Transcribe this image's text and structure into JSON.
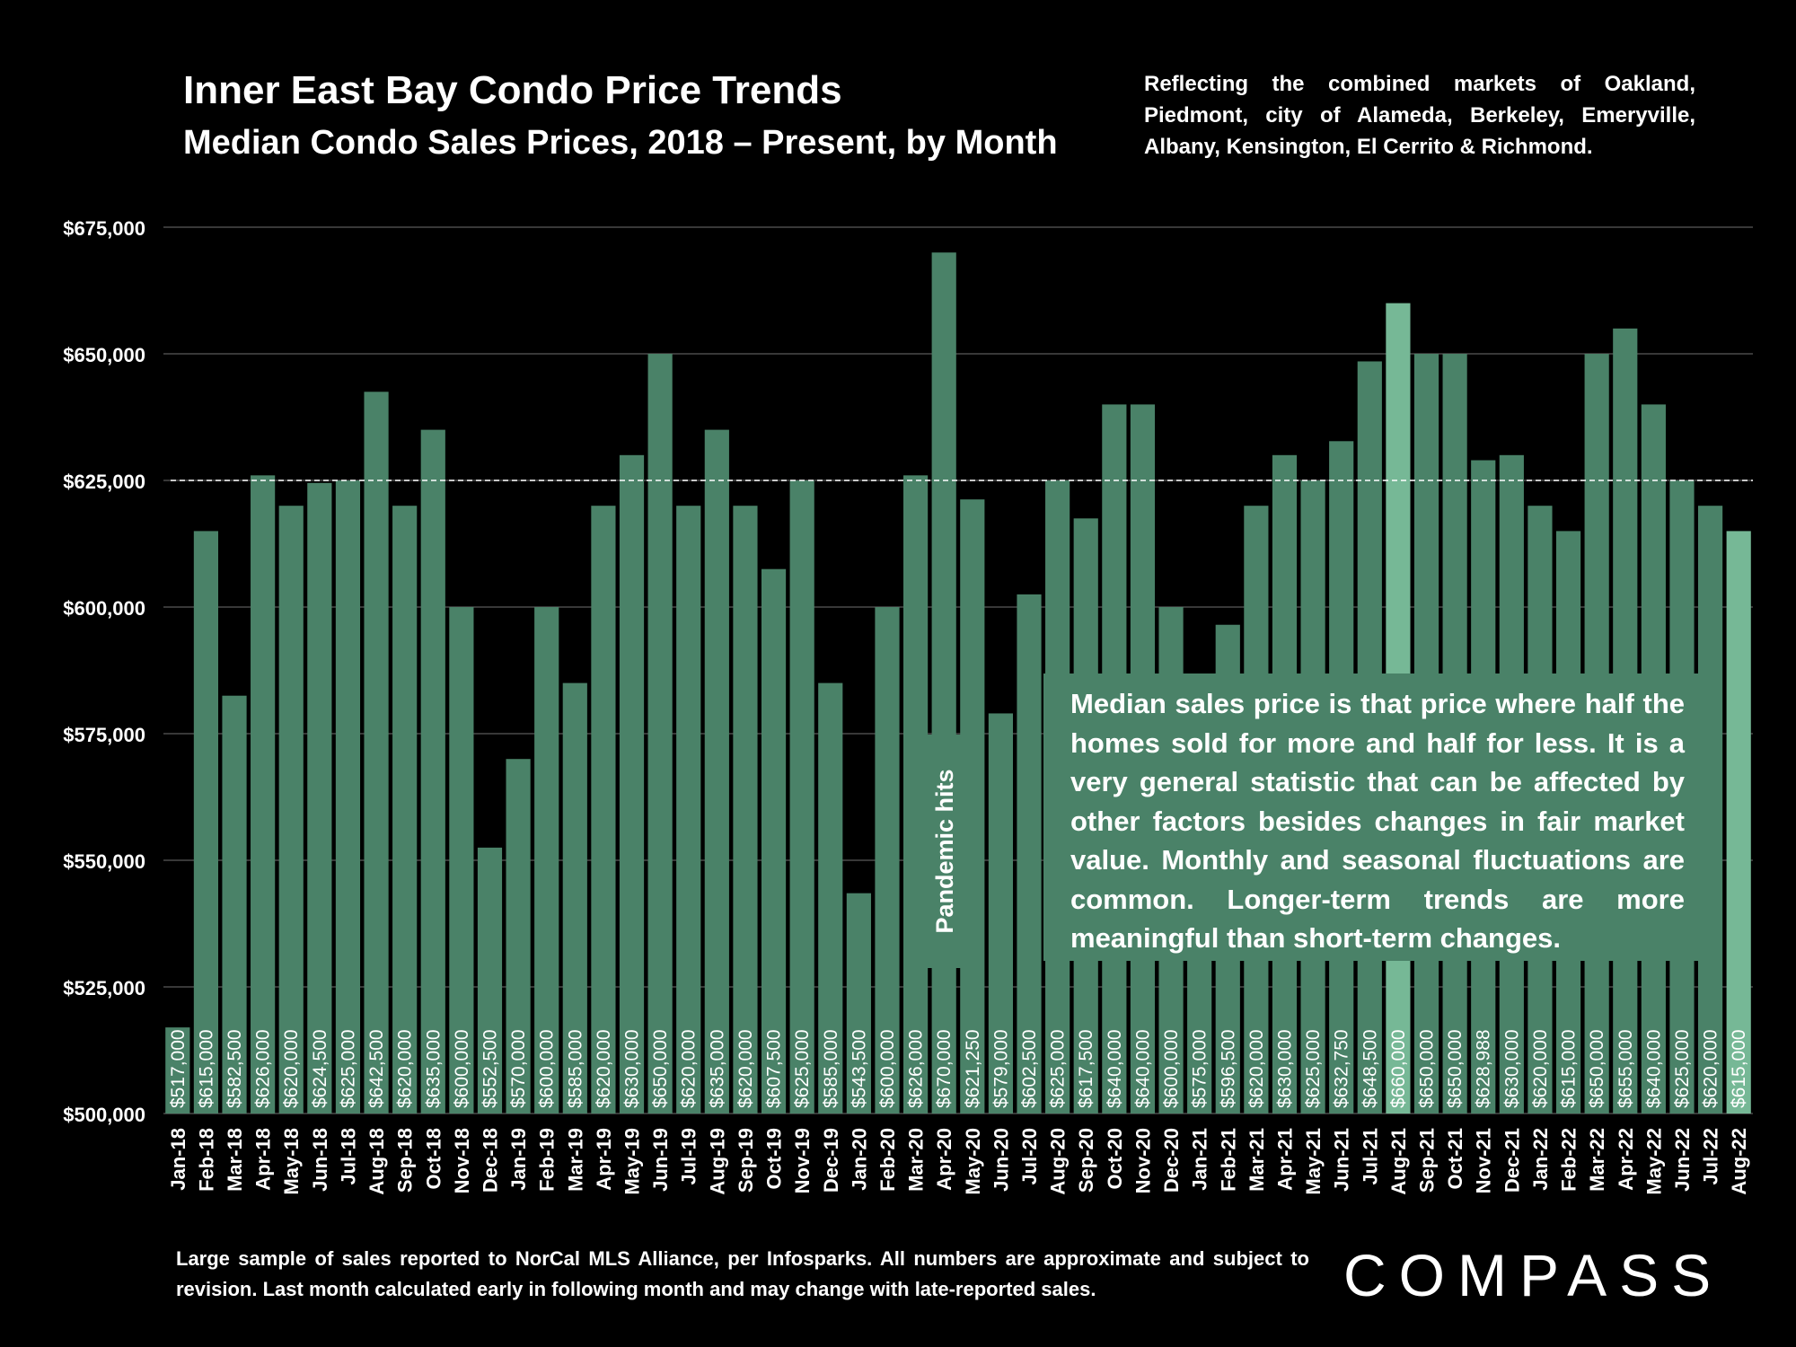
{
  "header": {
    "title": "Inner East Bay Condo Price Trends",
    "subtitle": "Median Condo Sales Prices, 2018 – Present, by Month",
    "markets_note": "Reflecting the combined markets of Oakland, Piedmont, city of Alameda, Berkeley, Emeryville, Albany, Kensington, El Cerrito & Richmond."
  },
  "explainer": "Median sales price is that price where half the homes sold for more and half for less. It is a very general statistic that can be affected by other factors besides changes in fair market value. Monthly and seasonal fluctuations are common. Longer-term trends are more meaningful than short-term changes.",
  "footnote": "Large sample of sales reported to NorCal MLS Alliance, per Infosparks. All numbers are approximate and subject to revision. Last month calculated early in following month and may change with late-reported sales.",
  "logo": "COMPASS",
  "chart_data": {
    "type": "bar",
    "title": "Median Condo Sales Prices, 2018 – Present, by Month",
    "categories": [
      "Jan-18",
      "Feb-18",
      "Mar-18",
      "Apr-18",
      "May-18",
      "Jun-18",
      "Jul-18",
      "Aug-18",
      "Sep-18",
      "Oct-18",
      "Nov-18",
      "Dec-18",
      "Jan-19",
      "Feb-19",
      "Mar-19",
      "Apr-19",
      "May-19",
      "Jun-19",
      "Jul-19",
      "Aug-19",
      "Sep-19",
      "Oct-19",
      "Nov-19",
      "Dec-19",
      "Jan-20",
      "Feb-20",
      "Mar-20",
      "Apr-20",
      "May-20",
      "Jun-20",
      "Jul-20",
      "Aug-20",
      "Sep-20",
      "Oct-20",
      "Nov-20",
      "Dec-20",
      "Jan-21",
      "Feb-21",
      "Mar-21",
      "Apr-21",
      "May-21",
      "Jun-21",
      "Jul-21",
      "Aug-21",
      "Sep-21",
      "Oct-21",
      "Nov-21",
      "Dec-21",
      "Jan-22",
      "Feb-22",
      "Mar-22",
      "Apr-22",
      "May-22",
      "Jun-22",
      "Jul-22",
      "Aug-22"
    ],
    "values": [
      517000,
      615000,
      582500,
      626000,
      620000,
      624500,
      625000,
      642500,
      620000,
      635000,
      600000,
      552500,
      570000,
      600000,
      585000,
      620000,
      630000,
      650000,
      620000,
      635000,
      620000,
      607500,
      625000,
      585000,
      543500,
      600000,
      626000,
      670000,
      621250,
      579000,
      602500,
      625000,
      617500,
      640000,
      640000,
      600000,
      575000,
      596500,
      620000,
      630000,
      625000,
      632750,
      648500,
      660000,
      650000,
      650000,
      628988,
      630000,
      620000,
      615000,
      650000,
      655000,
      640000,
      625000,
      620000,
      615000
    ],
    "data_labels": [
      "$517,000",
      "$615,000",
      "$582,500",
      "$626,000",
      "$620,000",
      "$624,500",
      "$625,000",
      "$642,500",
      "$620,000",
      "$635,000",
      "$600,000",
      "$552,500",
      "$570,000",
      "$600,000",
      "$585,000",
      "$620,000",
      "$630,000",
      "$650,000",
      "$620,000",
      "$635,000",
      "$620,000",
      "$607,500",
      "$625,000",
      "$585,000",
      "$543,500",
      "$600,000",
      "$626,000",
      "$670,000",
      "$621,250",
      "$579,000",
      "$602,500",
      "$625,000",
      "$617,500",
      "$640,000",
      "$640,000",
      "$600,000",
      "$575,000",
      "$596,500",
      "$620,000",
      "$630,000",
      "$625,000",
      "$632,750",
      "$648,500",
      "$660,000",
      "$650,000",
      "$650,000",
      "$628,988",
      "$630,000",
      "$620,000",
      "$615,000",
      "$650,000",
      "$655,000",
      "$640,000",
      "$625,000",
      "$620,000",
      "$615,000"
    ],
    "highlighted": [
      "Aug-21",
      "Aug-22"
    ],
    "reference_line": 625000,
    "annotation": "Pandemic hits",
    "annotation_category": "Apr-20",
    "ylim": [
      500000,
      675000
    ],
    "yticks": [
      500000,
      525000,
      550000,
      575000,
      600000,
      625000,
      650000,
      675000
    ],
    "ytick_labels": [
      "$500,000",
      "$525,000",
      "$550,000",
      "$575,000",
      "$600,000",
      "$625,000",
      "$650,000",
      "$675,000"
    ],
    "grid": true,
    "colors": {
      "bar": "#4a8268",
      "highlight": "#76b896",
      "grid": "#4a4a4a",
      "background": "#000000",
      "text": "#ffffff"
    }
  }
}
